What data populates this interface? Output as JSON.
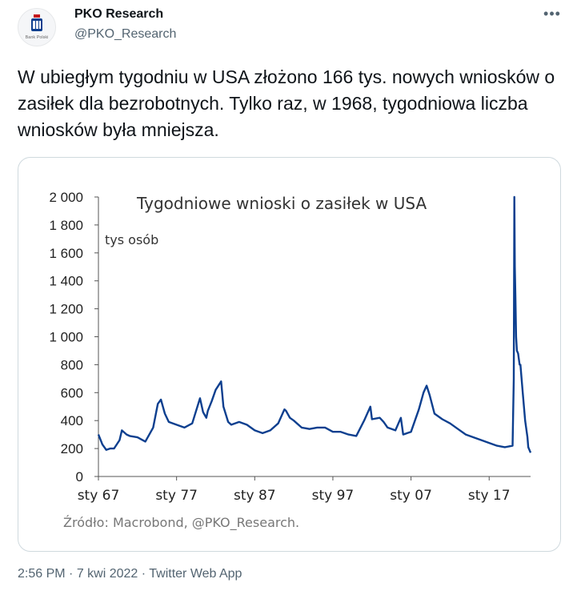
{
  "author": {
    "name": "PKO Research",
    "handle": "@PKO_Research",
    "avatar_icon": "pko-bank-polski-logo",
    "avatar_text": "Bank Polski"
  },
  "more_icon": "more-horizontal-icon",
  "tweet_text": "W ubiegłym tygodniu w USA złożono 166 tys. nowych wniosków o zasiłek dla bezrobotnych. Tylko raz, w 1968, tygodniowa liczba wniosków była mniejsza.",
  "footer": {
    "time": "2:56 PM",
    "date": "7 kwi 2022",
    "app": "Twitter Web App"
  },
  "chart_data": {
    "type": "line",
    "title": "Tygodniowe wnioski o zasiłek w USA",
    "unit_label": "tys osób",
    "source": "Źródło: Macrobond, @PKO_Research.",
    "ylim": [
      0,
      2000
    ],
    "xlim": [
      1967,
      2022.3
    ],
    "y_ticks": [
      0,
      200,
      400,
      600,
      800,
      1000,
      1200,
      1400,
      1600,
      1800,
      2000
    ],
    "y_tick_labels": [
      "0",
      "200",
      "400",
      "600",
      "800",
      "1 000",
      "1 200",
      "1 400",
      "1 600",
      "1 800",
      "2 000"
    ],
    "x_ticks": [
      1967,
      1977,
      1987,
      1997,
      2007,
      2017
    ],
    "x_tick_labels": [
      "sty 67",
      "sty 77",
      "sty 87",
      "sty 97",
      "sty 07",
      "sty 17"
    ],
    "line_color": "#0d3f8f",
    "grid": false,
    "series": [
      {
        "x": [
          1967,
          1967.5,
          1968,
          1968.5,
          1969,
          1969.7,
          1970,
          1970.6,
          1971,
          1972,
          1973,
          1974,
          1974.6,
          1975,
          1975.5,
          1976,
          1977,
          1978,
          1979,
          1980,
          1980.4,
          1980.8,
          1981,
          1981.5,
          1982,
          1982.7,
          1983,
          1983.6,
          1984,
          1985,
          1986,
          1987,
          1988,
          1989,
          1990,
          1990.8,
          1991,
          1991.5,
          1992,
          1993,
          1994,
          1995,
          1996,
          1997,
          1998,
          1999,
          2000,
          2001,
          2001.8,
          2002,
          2003,
          2003.5,
          2004,
          2005,
          2005.7,
          2006,
          2007,
          2008,
          2008.6,
          2009,
          2009.4,
          2010,
          2011,
          2012,
          2013,
          2014,
          2015,
          2016,
          2017,
          2018,
          2019,
          2020,
          2020.15,
          2020.22,
          2020.28,
          2020.35,
          2020.45,
          2020.55,
          2020.7,
          2020.9,
          2021,
          2021.3,
          2021.6,
          2021.9,
          2022,
          2022.3
        ],
        "y": [
          300,
          230,
          190,
          200,
          200,
          260,
          330,
          300,
          290,
          280,
          250,
          350,
          520,
          550,
          450,
          390,
          370,
          350,
          380,
          560,
          460,
          420,
          470,
          540,
          620,
          680,
          500,
          390,
          370,
          390,
          370,
          330,
          310,
          330,
          380,
          480,
          470,
          420,
          400,
          350,
          340,
          350,
          350,
          320,
          320,
          300,
          290,
          400,
          500,
          410,
          420,
          390,
          350,
          330,
          420,
          300,
          320,
          480,
          600,
          650,
          580,
          450,
          410,
          380,
          340,
          300,
          280,
          260,
          240,
          220,
          210,
          220,
          700,
          2000,
          1500,
          1300,
          1000,
          900,
          880,
          800,
          800,
          600,
          400,
          280,
          210,
          170
        ]
      }
    ]
  }
}
